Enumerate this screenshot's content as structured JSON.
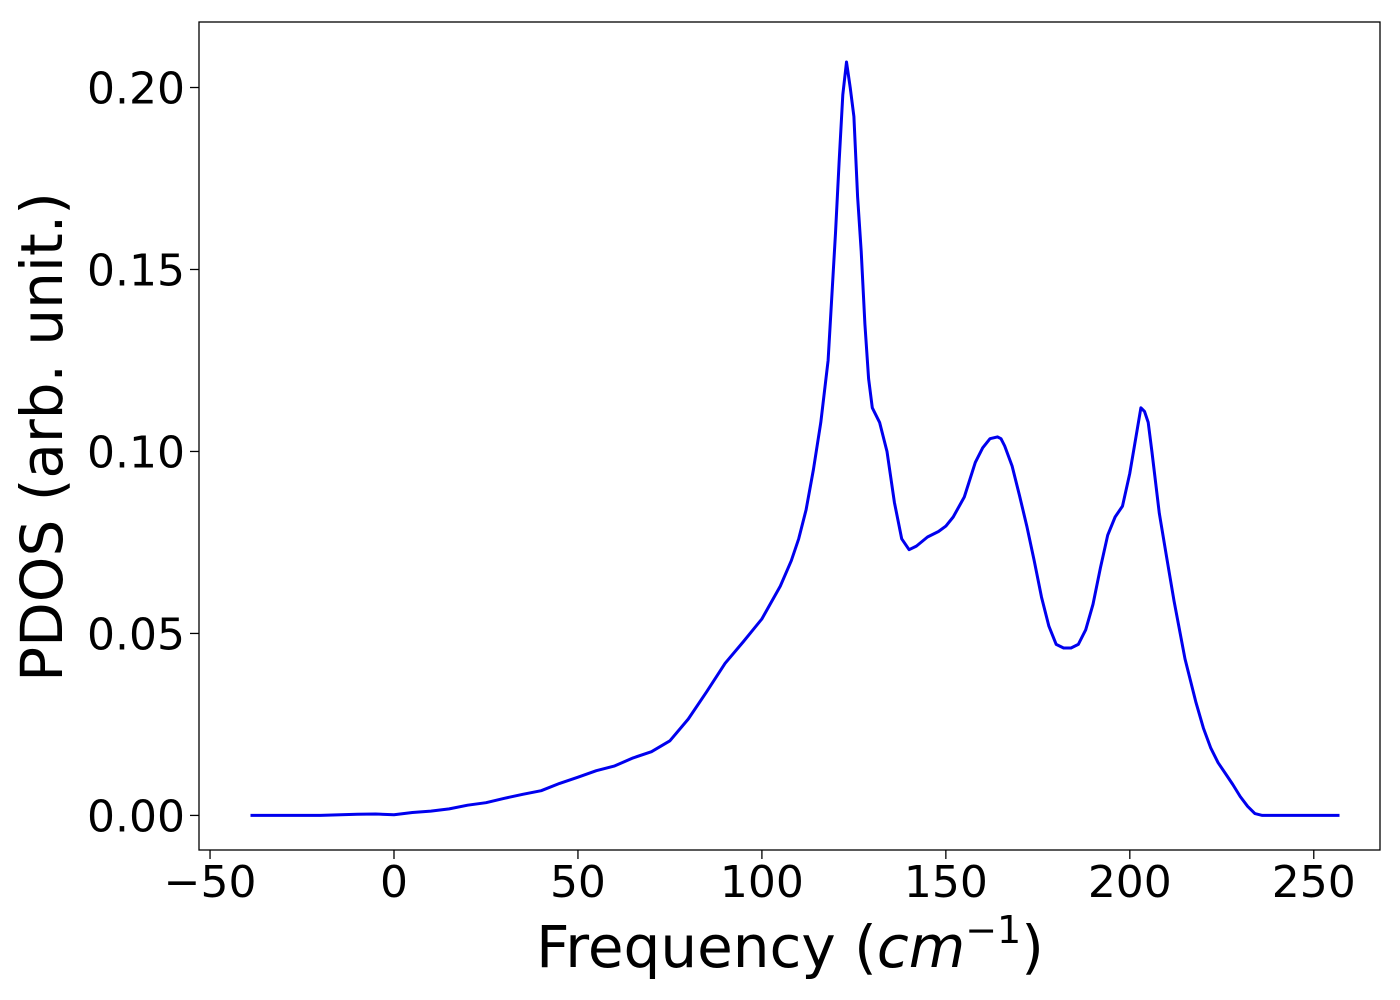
{
  "chart_data": {
    "type": "line",
    "title": "",
    "xlabel": "Frequency (",
    "xlabel_math": "cm",
    "xlabel_sup": "−1",
    "xlabel_close": ")",
    "ylabel": "PDOS (arb. unit.)",
    "xlim": [
      -53,
      268
    ],
    "ylim": [
      -0.0095,
      0.218
    ],
    "grid": false,
    "legend": "none",
    "x_ticks": [
      {
        "value": -50,
        "label": "−50"
      },
      {
        "value": 0,
        "label": "0"
      },
      {
        "value": 50,
        "label": "50"
      },
      {
        "value": 100,
        "label": "100"
      },
      {
        "value": 150,
        "label": "150"
      },
      {
        "value": 200,
        "label": "200"
      },
      {
        "value": 250,
        "label": "250"
      }
    ],
    "y_ticks": [
      {
        "value": 0.0,
        "label": "0.00"
      },
      {
        "value": 0.05,
        "label": "0.05"
      },
      {
        "value": 0.1,
        "label": "0.10"
      },
      {
        "value": 0.15,
        "label": "0.15"
      },
      {
        "value": 0.2,
        "label": "0.20"
      }
    ],
    "series": [
      {
        "color": "#0000ee",
        "x": [
          -39,
          -30,
          -20,
          -10,
          -5,
          0,
          5,
          10,
          15,
          20,
          25,
          30,
          35,
          40,
          45,
          50,
          55,
          60,
          65,
          70,
          75,
          80,
          85,
          90,
          95,
          100,
          105,
          108,
          110,
          112,
          114,
          116,
          118,
          120,
          121,
          122,
          123,
          124,
          125,
          126,
          127,
          128,
          129,
          130,
          132,
          134,
          136,
          138,
          140,
          142,
          145,
          148,
          150,
          152,
          155,
          158,
          160,
          162,
          164,
          165,
          166,
          168,
          170,
          172,
          174,
          176,
          178,
          180,
          182,
          184,
          186,
          188,
          190,
          192,
          194,
          196,
          198,
          200,
          202,
          203,
          204,
          205,
          206,
          208,
          210,
          212,
          215,
          218,
          220,
          222,
          224,
          226,
          228,
          230,
          232,
          234,
          236,
          240,
          245,
          250,
          257
        ],
        "y": [
          0.0,
          0.0,
          0.0,
          0.0003,
          0.0004,
          0.0002,
          0.0008,
          0.0012,
          0.0018,
          0.0028,
          0.0035,
          0.0047,
          0.0058,
          0.0068,
          0.0088,
          0.0105,
          0.0123,
          0.0136,
          0.0158,
          0.0175,
          0.0205,
          0.0265,
          0.034,
          0.0418,
          0.0478,
          0.054,
          0.063,
          0.07,
          0.076,
          0.084,
          0.095,
          0.108,
          0.125,
          0.16,
          0.18,
          0.198,
          0.207,
          0.2,
          0.192,
          0.17,
          0.155,
          0.135,
          0.12,
          0.112,
          0.108,
          0.1,
          0.086,
          0.076,
          0.073,
          0.074,
          0.0765,
          0.078,
          0.0795,
          0.082,
          0.0875,
          0.097,
          0.101,
          0.1035,
          0.104,
          0.1035,
          0.1015,
          0.096,
          0.088,
          0.0795,
          0.07,
          0.06,
          0.052,
          0.047,
          0.046,
          0.046,
          0.047,
          0.051,
          0.058,
          0.068,
          0.077,
          0.082,
          0.085,
          0.094,
          0.106,
          0.112,
          0.111,
          0.108,
          0.1,
          0.083,
          0.071,
          0.059,
          0.043,
          0.031,
          0.024,
          0.0185,
          0.0145,
          0.0115,
          0.0085,
          0.0052,
          0.0025,
          0.0005,
          0.0,
          0.0,
          0.0,
          0.0,
          0.0
        ]
      }
    ]
  }
}
